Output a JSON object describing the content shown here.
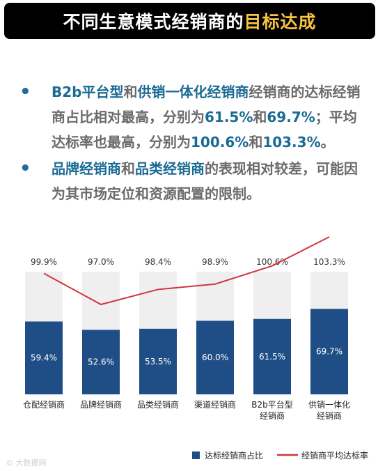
{
  "header": {
    "title_main": "不同生意模式经销商的",
    "title_highlight": "目标达成"
  },
  "bullets": [
    {
      "parts": [
        {
          "text": "B2b平台型",
          "hl": true
        },
        {
          "text": "和",
          "hl": false
        },
        {
          "text": "供销一体化经销商",
          "hl": true
        },
        {
          "text": "经销商的达标经销商占比相对最高，分别为",
          "hl": false
        },
        {
          "text": "61.5%",
          "hl": true
        },
        {
          "text": "和",
          "hl": false
        },
        {
          "text": "69.7%",
          "hl": true
        },
        {
          "text": "；平均达标率也最高，分别为",
          "hl": false
        },
        {
          "text": "100.6%",
          "hl": true
        },
        {
          "text": "和",
          "hl": false
        },
        {
          "text": "103.3%",
          "hl": true
        },
        {
          "text": "。",
          "hl": false
        }
      ]
    },
    {
      "parts": [
        {
          "text": "品牌经销商",
          "hl": true
        },
        {
          "text": "和",
          "hl": false
        },
        {
          "text": "品类经销商",
          "hl": true
        },
        {
          "text": "的表现相对较差，可能因为其市场定位和资源配置的限制。",
          "hl": false
        }
      ]
    }
  ],
  "chart_data": {
    "type": "bar",
    "categories": [
      [
        "仓配经销商"
      ],
      [
        "品牌经销商"
      ],
      [
        "品类经销商"
      ],
      [
        "渠道经销商"
      ],
      [
        "B2b平台型",
        "经销商"
      ],
      [
        "供销一体化",
        "经销商"
      ]
    ],
    "series": [
      {
        "name": "达标经销商占比",
        "type": "bar",
        "values": [
          59.4,
          52.6,
          53.5,
          60.0,
          61.5,
          69.7
        ],
        "labels": [
          "59.4%",
          "52.6%",
          "53.5%",
          "60.0%",
          "61.5%",
          "69.7%"
        ],
        "color": "#1f4e86"
      },
      {
        "name": "经销商平均达标率",
        "type": "line",
        "values": [
          99.9,
          97.0,
          98.4,
          98.9,
          100.6,
          103.3
        ],
        "labels": [
          "99.9%",
          "97.0%",
          "98.4%",
          "98.9%",
          "100.6%",
          "103.3%"
        ],
        "color": "#d0363c"
      }
    ],
    "ylim": [
      0,
      100
    ],
    "background_bar_color": "#efefef",
    "legend_position": "bottom-right"
  },
  "watermark": "© 大数据网"
}
